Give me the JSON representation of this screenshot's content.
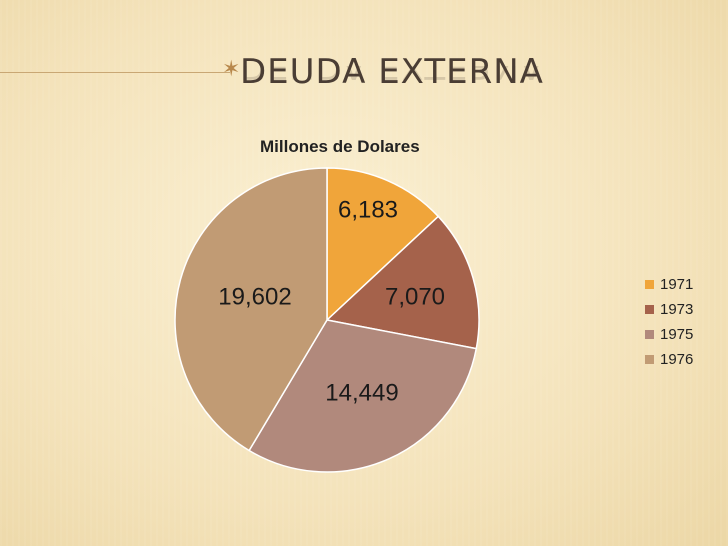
{
  "slide": {
    "title": "DEUDA EXTERNA"
  },
  "chart_data": {
    "type": "pie",
    "title": "Millones de Dolares",
    "categories": [
      "1971",
      "1973",
      "1975",
      "1976"
    ],
    "values": [
      6183,
      7070,
      14449,
      19602
    ],
    "labels": [
      "6,183",
      "7,070",
      "14,449",
      "19,602"
    ],
    "colors": [
      "#f0a53a",
      "#a5624b",
      "#b1897c",
      "#c19b74"
    ],
    "legend_position": "right"
  }
}
